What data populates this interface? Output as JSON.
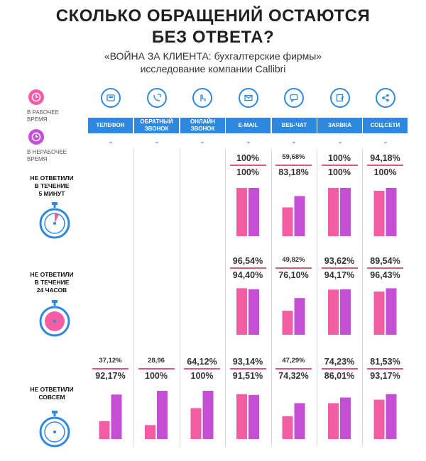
{
  "header": {
    "title_line1": "СКОЛЬКО ОБРАЩЕНИЙ ОСТАЮТСЯ",
    "title_line2": "БЕЗ ОТВЕТА?",
    "subtitle_line1": "«ВОЙНА ЗА КЛИЕНТА: бухгалтерские фирмы»",
    "subtitle_line2": "исследование компании Callibri"
  },
  "legend": {
    "work_line1": "В РАБОЧЕЕ",
    "work_line2": "ВРЕМЯ",
    "nonwork_line1": "В НЕРАБОЧЕЕ",
    "nonwork_line2": "ВРЕМЯ"
  },
  "colors": {
    "work": "#f45ca4",
    "nonwork": "#c54fd4",
    "accent_blue": "#2e88e0",
    "separator": "#d85a7a"
  },
  "channels": [
    {
      "label": "ТЕЛЕФОН",
      "icon": "phone-icon"
    },
    {
      "label": "ОБРАТНЫЙ ЗВОНОК",
      "icon": "callback-icon"
    },
    {
      "label": "ОНЛАЙН ЗВОНОК",
      "icon": "online-call-icon"
    },
    {
      "label": "E-MAIL",
      "icon": "email-icon"
    },
    {
      "label": "ВЕБ-ЧАТ",
      "icon": "chat-icon"
    },
    {
      "label": "ЗАЯВКА",
      "icon": "form-icon"
    },
    {
      "label": "СОЦ.СЕТИ",
      "icon": "share-icon"
    }
  ],
  "rows": [
    {
      "label_line1": "НЕ ОТВЕТИЛИ",
      "label_line2": "В ТЕЧЕНИЕ",
      "label_line3": "5 МИНУТ",
      "icon": "stopwatch-5min-icon"
    },
    {
      "label_line1": "НЕ ОТВЕТИЛИ",
      "label_line2": "В ТЕЧЕНИЕ",
      "label_line3": "24 ЧАСОВ",
      "icon": "stopwatch-24h-icon"
    },
    {
      "label_line1": "НЕ ОТВЕТИЛИ",
      "label_line2": "СОВСЕМ",
      "label_line3": "",
      "icon": "stopwatch-never-icon"
    }
  ],
  "chart_data": {
    "type": "bar",
    "categories": [
      "ТЕЛЕФОН",
      "ОБРАТНЫЙ ЗВОНОК",
      "ОНЛАЙН ЗВОНОК",
      "E-MAIL",
      "ВЕБ-ЧАТ",
      "ЗАЯВКА",
      "СОЦ.СЕТИ"
    ],
    "series_names": [
      "В РАБОЧЕЕ ВРЕМЯ",
      "В НЕРАБОЧЕЕ ВРЕМЯ"
    ],
    "ylim": [
      0,
      100
    ],
    "panels": [
      {
        "label": "НЕ ОТВЕТИЛИ В ТЕЧЕНИЕ 5 МИНУТ",
        "work": [
          null,
          null,
          null,
          100,
          59.68,
          100,
          94.18
        ],
        "nonwork": [
          null,
          null,
          null,
          100,
          83.18,
          100,
          100
        ],
        "work_text": [
          "",
          "",
          "",
          "100%",
          "59,68%",
          "100%",
          "94,18%"
        ],
        "nonwork_text": [
          "",
          "",
          "",
          "100%",
          "83,18%",
          "100%",
          "100%"
        ]
      },
      {
        "label": "НЕ ОТВЕТИЛИ В ТЕЧЕНИЕ 24 ЧАСОВ",
        "work": [
          null,
          null,
          null,
          96.54,
          49.82,
          93.62,
          89.54
        ],
        "nonwork": [
          null,
          null,
          null,
          94.4,
          76.1,
          94.17,
          96.43
        ],
        "work_text": [
          "",
          "",
          "",
          "96,54%",
          "49,82%",
          "93,62%",
          "89,54%"
        ],
        "nonwork_text": [
          "",
          "",
          "",
          "94,40%",
          "76,10%",
          "94,17%",
          "96,43%"
        ]
      },
      {
        "label": "НЕ ОТВЕТИЛИ СОВСЕМ",
        "work": [
          37.12,
          28.96,
          64.12,
          93.14,
          47.29,
          74.23,
          81.53
        ],
        "nonwork": [
          92.17,
          100,
          100,
          91.51,
          74.32,
          86.01,
          93.17
        ],
        "work_text": [
          "37,12%",
          "28,96",
          "64,12%",
          "93,14%",
          "47,29%",
          "74,23%",
          "81,53%"
        ],
        "nonwork_text": [
          "92,17%",
          "100%",
          "100%",
          "91,51%",
          "74,32%",
          "86,01%",
          "93,17%"
        ]
      }
    ]
  }
}
